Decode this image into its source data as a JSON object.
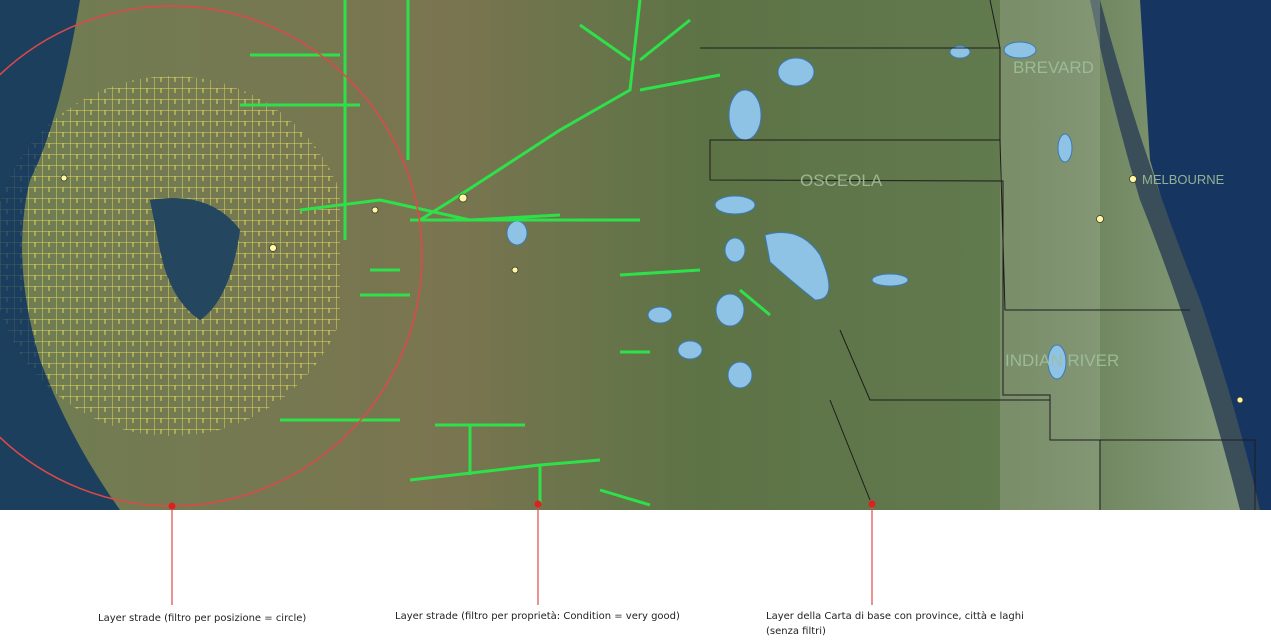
{
  "map": {
    "labels": {
      "brevard": "BREVARD",
      "osceola": "OSCEOLA",
      "indian_river": "INDIAN RIVER",
      "melbourne": "MELBOURNE"
    },
    "captions": [
      "Layer strade (filtro per posizione = circle)",
      "Layer strade (filtro per proprietà: Condition = very good)",
      "Layer della Carta di base con province, città e laghi (senza filtri)"
    ]
  }
}
